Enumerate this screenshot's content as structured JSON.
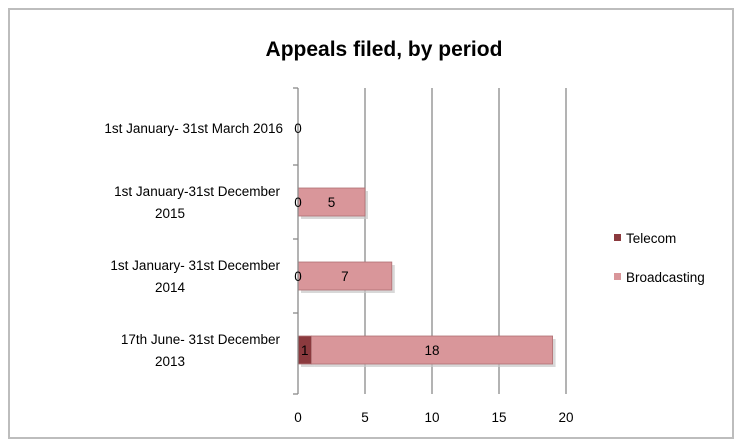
{
  "chart_data": {
    "type": "bar",
    "orientation": "horizontal",
    "stacked": true,
    "title": "Appeals filed, by period",
    "categories": [
      [
        "1st January- 31st March 2016"
      ],
      [
        "1st January-31st December",
        "2015"
      ],
      [
        "1st January- 31st December",
        "2014"
      ],
      [
        "17th June- 31st December",
        "2013"
      ]
    ],
    "series": [
      {
        "name": "Telecom",
        "color": "#8b3a3e",
        "values": [
          0,
          0,
          0,
          1
        ]
      },
      {
        "name": "Broadcasting",
        "color": "#d9969a",
        "values": [
          0,
          5,
          7,
          18
        ]
      }
    ],
    "data_labels": [
      [
        "0"
      ],
      [
        "0",
        "5"
      ],
      [
        "0",
        "7"
      ],
      [
        "1",
        "18"
      ]
    ],
    "xlim": [
      0,
      20
    ],
    "xticks": [
      "0",
      "5",
      "10",
      "15",
      "20"
    ],
    "grid": "vertical",
    "legend": "right"
  }
}
